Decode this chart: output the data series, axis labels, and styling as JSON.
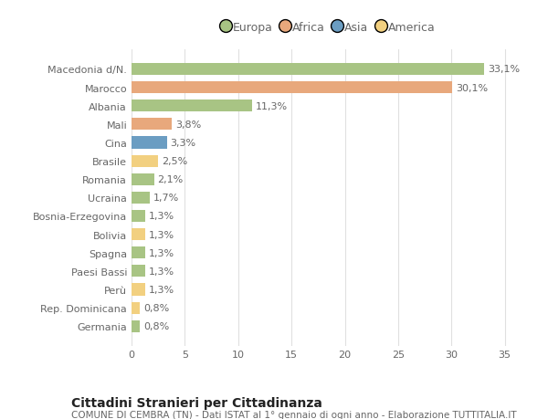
{
  "countries": [
    "Macedonia d/N.",
    "Marocco",
    "Albania",
    "Mali",
    "Cina",
    "Brasile",
    "Romania",
    "Ucraina",
    "Bosnia-Erzegovina",
    "Bolivia",
    "Spagna",
    "Paesi Bassi",
    "Perù",
    "Rep. Dominicana",
    "Germania"
  ],
  "values": [
    33.1,
    30.1,
    11.3,
    3.8,
    3.3,
    2.5,
    2.1,
    1.7,
    1.3,
    1.3,
    1.3,
    1.3,
    1.3,
    0.8,
    0.8
  ],
  "labels": [
    "33,1%",
    "30,1%",
    "11,3%",
    "3,8%",
    "3,3%",
    "2,5%",
    "2,1%",
    "1,7%",
    "1,3%",
    "1,3%",
    "1,3%",
    "1,3%",
    "1,3%",
    "0,8%",
    "0,8%"
  ],
  "colors": [
    "#a8c484",
    "#e8a87c",
    "#a8c484",
    "#e8a87c",
    "#6b9dc2",
    "#f2d080",
    "#a8c484",
    "#a8c484",
    "#a8c484",
    "#f2d080",
    "#a8c484",
    "#a8c484",
    "#f2d080",
    "#f2d080",
    "#a8c484"
  ],
  "legend_labels": [
    "Europa",
    "Africa",
    "Asia",
    "America"
  ],
  "legend_colors": [
    "#a8c484",
    "#e8a87c",
    "#6b9dc2",
    "#f2d080"
  ],
  "title": "Cittadini Stranieri per Cittadinanza",
  "subtitle": "COMUNE DI CEMBRA (TN) - Dati ISTAT al 1° gennaio di ogni anno - Elaborazione TUTTITALIA.IT",
  "xlim": [
    0,
    37
  ],
  "xticks": [
    0,
    5,
    10,
    15,
    20,
    25,
    30,
    35
  ],
  "bg_color": "#ffffff",
  "grid_color": "#e0e0e0",
  "bar_height": 0.65,
  "title_fontsize": 10,
  "subtitle_fontsize": 7.5,
  "label_fontsize": 8,
  "tick_fontsize": 8,
  "legend_fontsize": 9
}
